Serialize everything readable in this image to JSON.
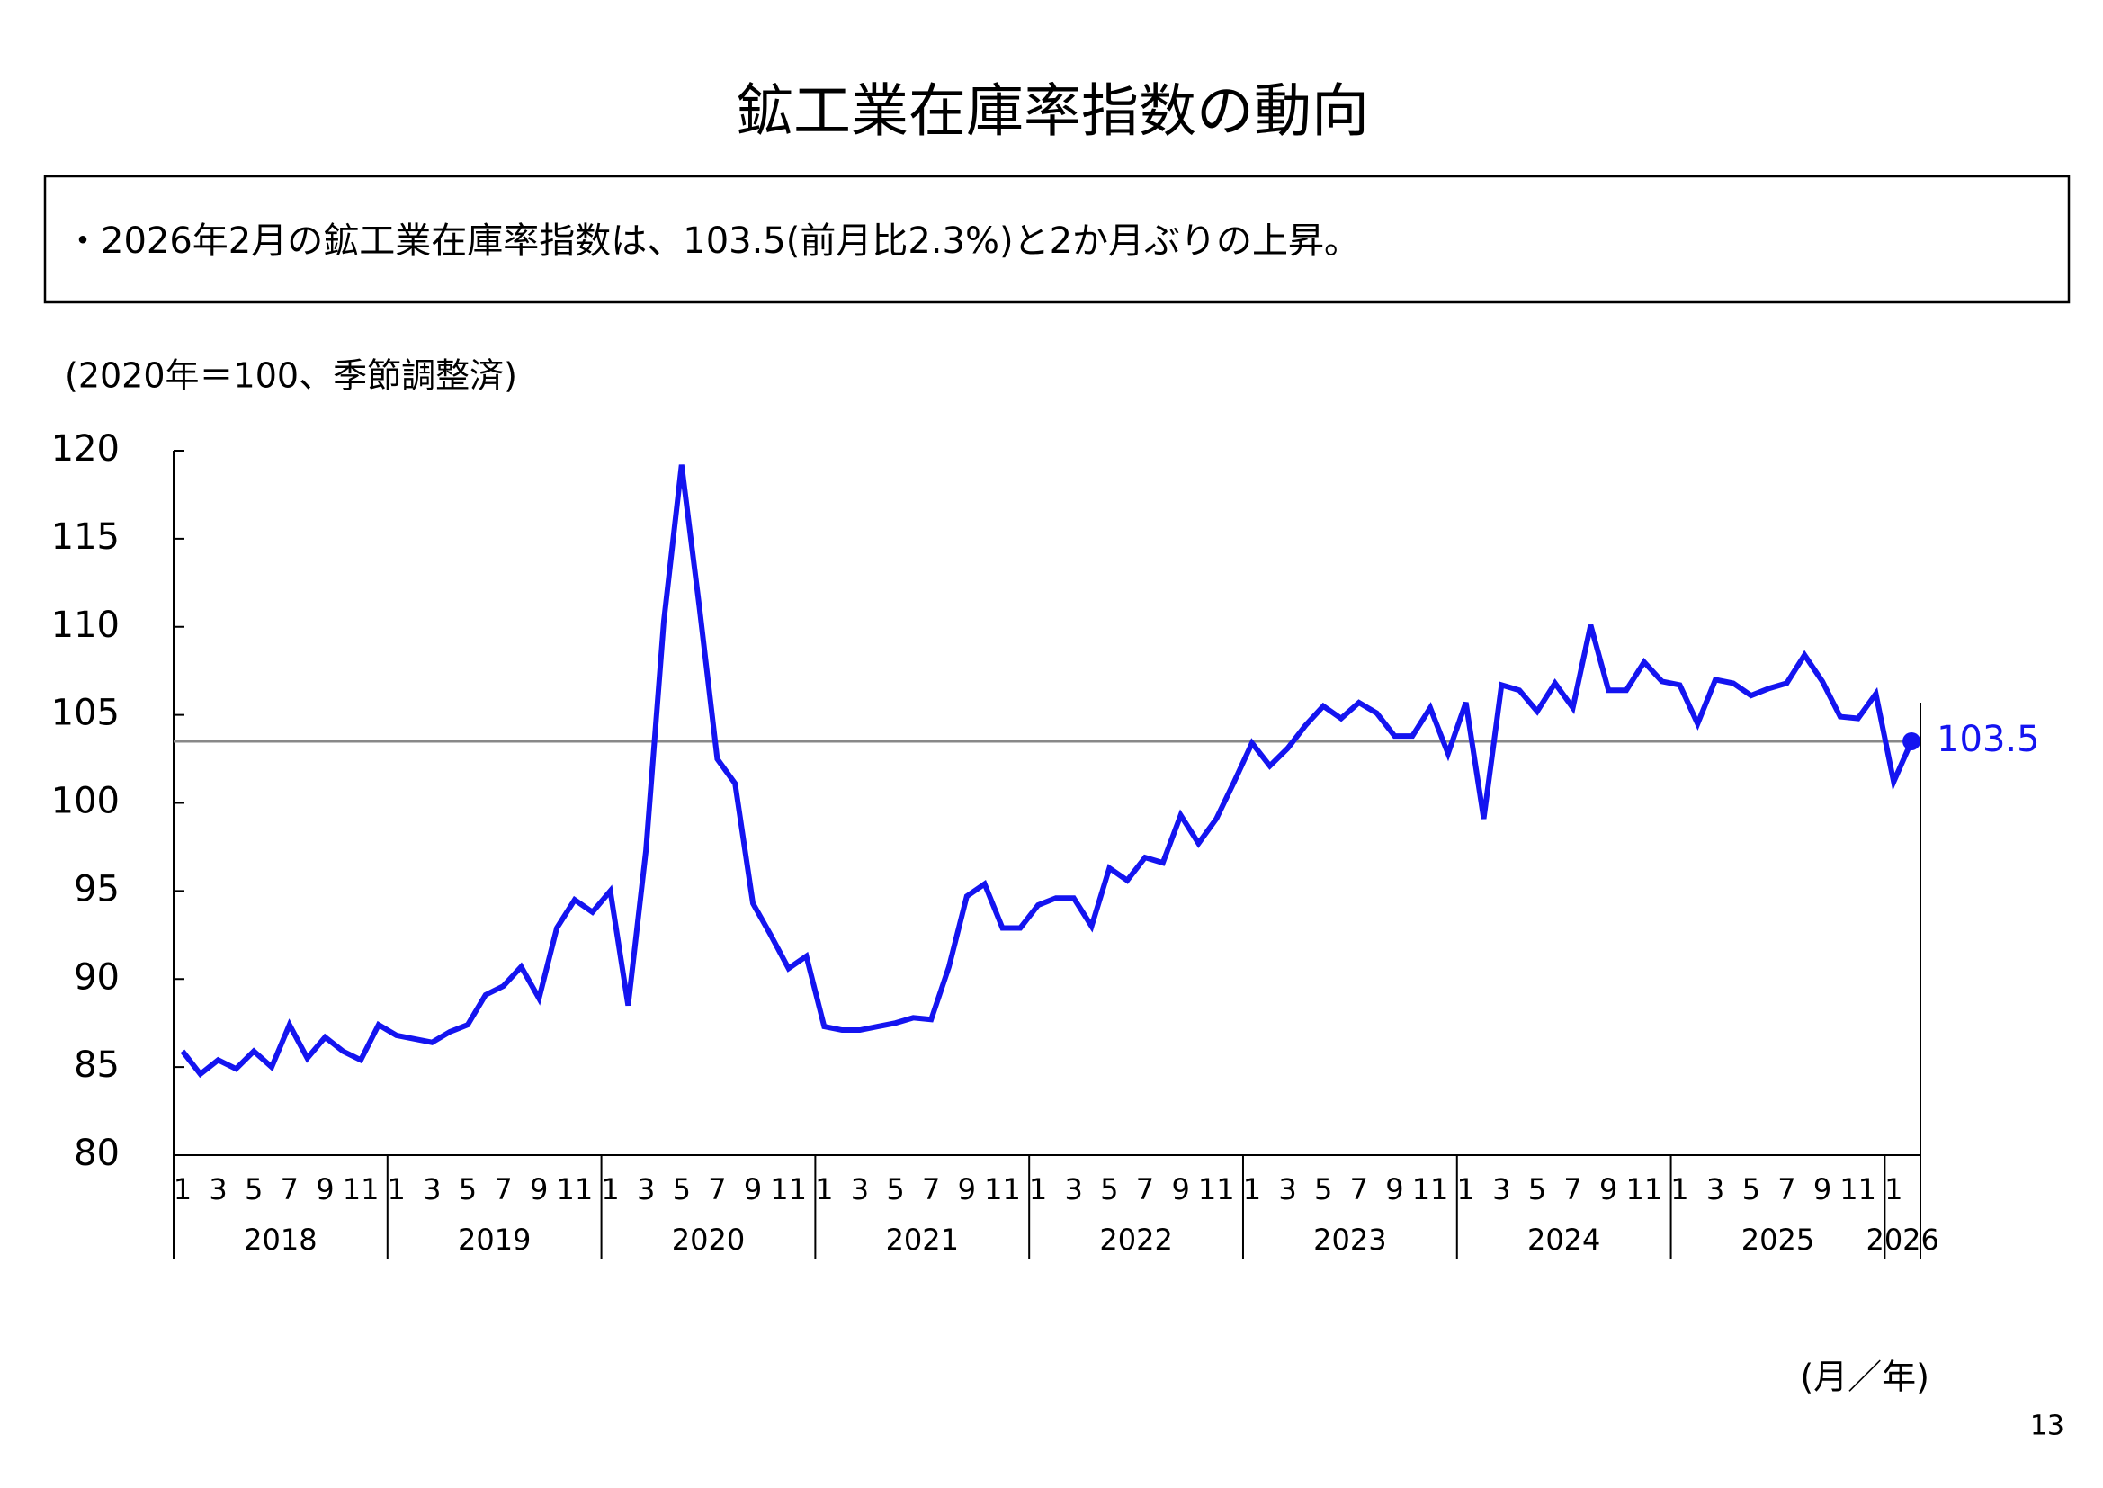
{
  "header": {
    "title": "鉱工業在庫率指数の動向",
    "summary": "・2026年2月の鉱工業在庫率指数は、103.5(前月比2.3%)と2か月ぶりの上昇。",
    "page_number": "13"
  },
  "chart_data": {
    "type": "line",
    "y_label": "(2020年＝100、季節調整済)",
    "x_label": "(月／年)",
    "years": [
      "2018",
      "2019",
      "2020",
      "2021",
      "2022",
      "2023",
      "2024",
      "2025",
      "2026"
    ],
    "categories": [
      "1",
      null,
      "3",
      null,
      "5",
      null,
      "7",
      null,
      "9",
      null,
      "11",
      null,
      "1",
      null,
      "3",
      null,
      "5",
      null,
      "7",
      null,
      "9",
      null,
      "11",
      null,
      "1",
      null,
      "3",
      null,
      "5",
      null,
      "7",
      null,
      "9",
      null,
      "11",
      null,
      "1",
      null,
      "3",
      null,
      "5",
      null,
      "7",
      null,
      "9",
      null,
      "11",
      null,
      "1",
      null,
      "3",
      null,
      "5",
      null,
      "7",
      null,
      "9",
      null,
      "11",
      null,
      "1",
      null,
      "3",
      null,
      "5",
      null,
      "7",
      null,
      "9",
      null,
      "11",
      null,
      "1",
      null,
      "3",
      null,
      "5",
      null,
      "7",
      null,
      "9",
      null,
      "11",
      null,
      "1",
      null,
      "3",
      null,
      "5",
      null,
      "7",
      null,
      "9",
      null,
      "11",
      null,
      "1",
      null
    ],
    "values": [
      85.9,
      84.6,
      85.4,
      84.9,
      85.9,
      85.0,
      87.4,
      85.5,
      86.7,
      85.9,
      85.4,
      87.4,
      86.8,
      86.6,
      86.4,
      87.0,
      87.4,
      89.1,
      89.6,
      90.7,
      88.9,
      92.9,
      94.5,
      93.8,
      95.0,
      88.5,
      97.3,
      110.3,
      119.2,
      111.1,
      102.5,
      101.1,
      94.3,
      92.5,
      90.6,
      91.3,
      87.3,
      87.1,
      87.1,
      87.3,
      87.5,
      87.8,
      87.7,
      90.7,
      94.7,
      95.4,
      92.9,
      92.9,
      94.2,
      94.6,
      94.6,
      93.0,
      96.3,
      95.6,
      96.9,
      96.6,
      99.3,
      97.7,
      99.1,
      101.2,
      103.4,
      102.1,
      103.1,
      104.4,
      105.5,
      104.8,
      105.7,
      105.1,
      103.8,
      103.8,
      105.4,
      102.8,
      105.7,
      99.1,
      106.7,
      106.4,
      105.2,
      106.8,
      105.4,
      110.1,
      106.4,
      106.4,
      108.0,
      106.9,
      106.7,
      104.5,
      107.0,
      106.8,
      106.1,
      106.5,
      106.8,
      108.4,
      106.9,
      104.9,
      104.8,
      106.2,
      101.2,
      103.5
    ],
    "color": "#1414f0",
    "reference_line": 103.5,
    "reference_color": "#888888",
    "ylim": [
      80,
      120
    ],
    "yticks": [
      80,
      85,
      90,
      95,
      100,
      105,
      110,
      115,
      120
    ],
    "grid": false
  }
}
